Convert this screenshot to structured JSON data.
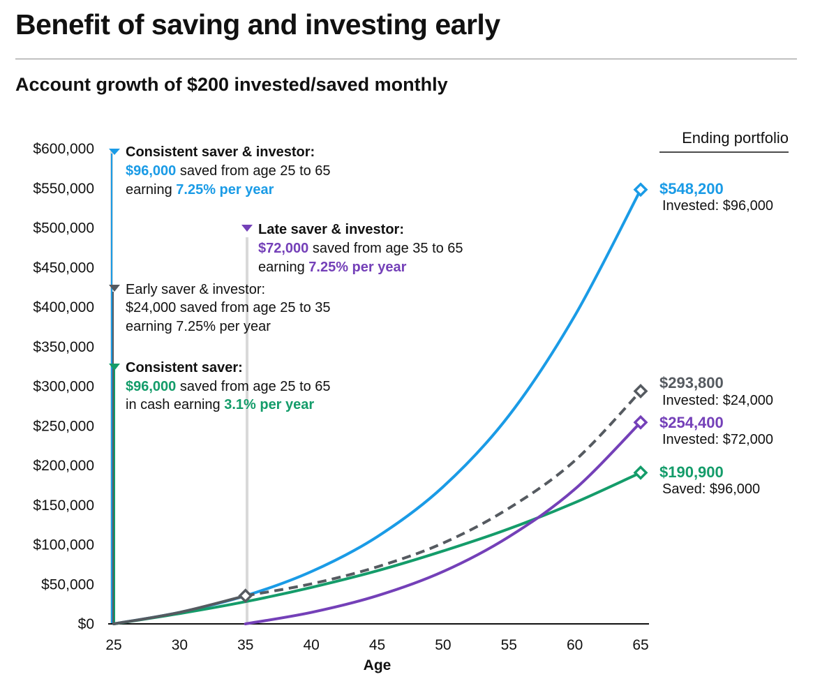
{
  "page": {
    "title": "Benefit of saving and investing early",
    "subtitle": "Account growth of $200 invested/saved monthly"
  },
  "colors": {
    "blue": "#1a9be6",
    "gray": "#555a60",
    "purple": "#7440b8",
    "green": "#149c6a",
    "axis": "#111111",
    "marker_line": "#d9d9d9"
  },
  "chart_data": {
    "type": "line",
    "xlabel": "Age",
    "ylabel": "",
    "xlim": [
      25,
      65
    ],
    "ylim": [
      0,
      600000
    ],
    "x_ticks": [
      25,
      30,
      35,
      40,
      45,
      50,
      55,
      60,
      65
    ],
    "y_ticks": [
      0,
      50000,
      100000,
      150000,
      200000,
      250000,
      300000,
      350000,
      400000,
      450000,
      500000,
      550000,
      600000
    ],
    "y_tick_labels": [
      "$0",
      "$50,000",
      "$100,000",
      "$150,000",
      "$200,000",
      "$250,000",
      "$300,000",
      "$350,000",
      "$400,000",
      "$450,000",
      "$500,000",
      "$550,000",
      "$600,000"
    ],
    "ending_portfolio_header": "Ending portfolio",
    "series": [
      {
        "name": "Consistent saver & investor",
        "color_key": "blue",
        "style": "solid",
        "x": [
          25,
          30,
          35,
          40,
          45,
          50,
          55,
          60,
          65
        ],
        "values": [
          0,
          14500,
          35500,
          66000,
          110000,
          173000,
          263000,
          389000,
          548200
        ],
        "end_value": "$548,200",
        "end_sub": "Invested: $96,000",
        "note_title": "Consistent saver & investor:",
        "note_amount": "$96,000",
        "note_rest1": " saved from age 25 to 65",
        "note_pre2": "earning ",
        "note_rate": "7.25% per year",
        "note_post2": ""
      },
      {
        "name": "Early saver & investor",
        "color_key": "gray",
        "style": "dashed",
        "x": [
          25,
          30,
          35,
          40,
          45,
          50,
          55,
          60,
          65
        ],
        "values": [
          0,
          14500,
          35500,
          50500,
          72000,
          102000,
          146000,
          206000,
          293800
        ],
        "end_value": "$293,800",
        "end_sub": "Invested: $24,000",
        "note_title": "Early saver & investor:",
        "note_amount": "$24,000",
        "note_rest1": " saved from age 25 to 35",
        "note_pre2": "earning 7.25% per year",
        "note_rate": "",
        "note_post2": ""
      },
      {
        "name": "Late saver & investor",
        "color_key": "purple",
        "style": "solid",
        "x": [
          35,
          40,
          45,
          50,
          55,
          60,
          65
        ],
        "values": [
          0,
          14500,
          35500,
          66000,
          110000,
          170000,
          254400
        ],
        "end_value": "$254,400",
        "end_sub": "Invested: $72,000",
        "note_title": "Late saver & investor:",
        "note_amount": "$72,000",
        "note_rest1": " saved from age 35 to 65",
        "note_pre2": "earning ",
        "note_rate": "7.25% per year",
        "note_post2": ""
      },
      {
        "name": "Consistent saver",
        "color_key": "green",
        "style": "solid",
        "x": [
          25,
          30,
          35,
          40,
          45,
          50,
          55,
          60,
          65
        ],
        "values": [
          0,
          13000,
          28000,
          46000,
          67000,
          92000,
          120000,
          153000,
          190900
        ],
        "end_value": "$190,900",
        "end_sub": "Saved: $96,000",
        "note_title": "Consistent saver:",
        "note_amount": "$96,000",
        "note_rest1": " saved from age 25 to 65",
        "note_pre2": "in cash earning ",
        "note_rate": "3.1% per year",
        "note_post2": ""
      }
    ]
  }
}
